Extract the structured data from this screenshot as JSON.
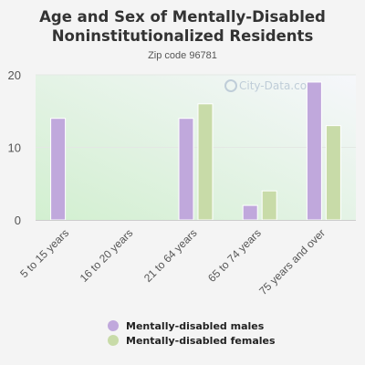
{
  "chart_data": {
    "type": "bar",
    "title": "Age and Sex of Mentally-Disabled Noninstitutionalized Residents",
    "subtitle": "Zip code 96781",
    "categories": [
      "5 to 15 years",
      "16 to 20 years",
      "21 to 64 years",
      "65 to 74 years",
      "75 years and over"
    ],
    "series": [
      {
        "name": "Mentally-disabled males",
        "color": "#c0a8dc",
        "values": [
          14,
          0,
          14,
          2,
          19
        ]
      },
      {
        "name": "Mentally-disabled females",
        "color": "#c8dba8",
        "values": [
          0,
          0,
          16,
          4,
          13
        ]
      }
    ],
    "ylim": [
      0,
      20
    ],
    "yticks": [
      "0",
      "10",
      "20"
    ],
    "grid": true,
    "legend_position": "bottom",
    "watermark": "City-Data.com"
  }
}
